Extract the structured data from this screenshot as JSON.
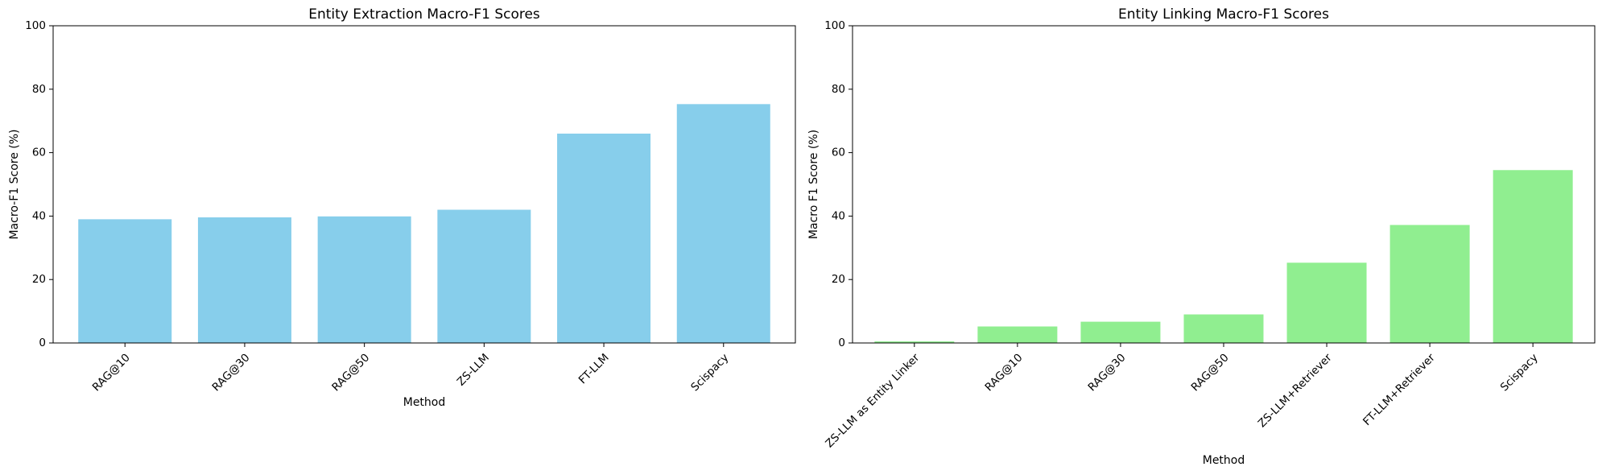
{
  "chart_data": [
    {
      "type": "bar",
      "title": "Entity Extraction Macro-F1 Scores",
      "xlabel": "Method",
      "ylabel": "Macro-F1 Score (%)",
      "categories": [
        "RAG@10",
        "RAG@30",
        "RAG@50",
        "ZS-LLM",
        "FT-LLM",
        "Scispacy"
      ],
      "values": [
        39.0,
        39.6,
        39.9,
        42.0,
        66.0,
        75.3
      ],
      "ylim": [
        0,
        100
      ],
      "yticks": [
        "0",
        "20",
        "40",
        "60",
        "80",
        "100"
      ],
      "color": "#87ceeb",
      "grid": false
    },
    {
      "type": "bar",
      "title": "Entity Linking Macro-F1 Scores",
      "xlabel": "Method",
      "ylabel": "Macro F1 Score (%)",
      "categories": [
        "ZS-LLM as Entity Linker",
        "RAG@10",
        "RAG@30",
        "RAG@50",
        "ZS-LLM+Retriever",
        "FT-LLM+Retriever",
        "Scispacy"
      ],
      "values": [
        0.5,
        5.2,
        6.7,
        9.0,
        25.3,
        37.2,
        54.5
      ],
      "ylim": [
        0,
        100
      ],
      "yticks": [
        "0",
        "20",
        "40",
        "60",
        "80",
        "100"
      ],
      "color": "#90ee90",
      "grid": false
    }
  ]
}
